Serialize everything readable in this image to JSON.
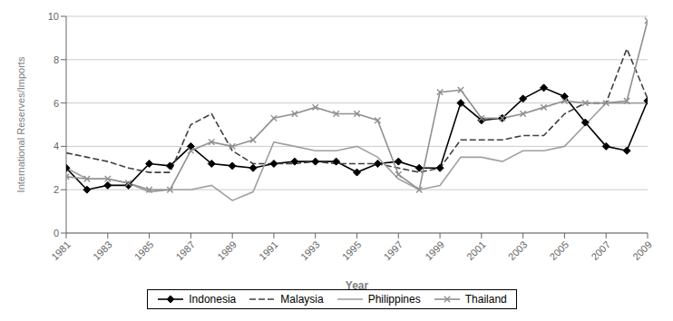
{
  "chart_data": {
    "type": "line",
    "x": [
      1981,
      1982,
      1983,
      1984,
      1985,
      1986,
      1987,
      1988,
      1989,
      1990,
      1991,
      1992,
      1993,
      1994,
      1995,
      1996,
      1997,
      1998,
      1999,
      2000,
      2001,
      2002,
      2003,
      2004,
      2005,
      2006,
      2007,
      2008,
      2009
    ],
    "series": [
      {
        "name": "Indonesia",
        "color": "#000000",
        "marker": "diamond",
        "line_style": "solid",
        "values": [
          3.0,
          2.0,
          2.2,
          2.2,
          3.2,
          3.1,
          4.0,
          3.2,
          3.1,
          3.0,
          3.2,
          3.3,
          3.3,
          3.3,
          2.8,
          3.2,
          3.3,
          3.0,
          3.0,
          6.0,
          5.2,
          5.3,
          6.2,
          6.7,
          6.3,
          5.1,
          4.0,
          3.8,
          6.1
        ]
      },
      {
        "name": "Malaysia",
        "color": "#404040",
        "line_style": "dashed",
        "values": [
          3.7,
          3.5,
          3.3,
          3.0,
          2.8,
          2.8,
          5.0,
          5.5,
          3.8,
          3.2,
          3.2,
          3.2,
          3.3,
          3.2,
          3.2,
          3.2,
          3.0,
          2.8,
          3.0,
          4.3,
          4.3,
          4.3,
          4.5,
          4.5,
          5.5,
          6.0,
          6.0,
          8.5,
          6.2
        ]
      },
      {
        "name": "Philippines",
        "color": "#a0a0a0",
        "line_style": "solid",
        "values": [
          3.0,
          2.5,
          2.5,
          2.3,
          1.9,
          2.0,
          2.0,
          2.2,
          1.5,
          1.9,
          4.2,
          4.0,
          3.8,
          3.8,
          4.0,
          3.5,
          2.5,
          2.0,
          2.2,
          3.5,
          3.5,
          3.3,
          3.8,
          3.8,
          4.0,
          5.0,
          6.0,
          6.0,
          6.0
        ]
      },
      {
        "name": "Thailand",
        "color": "#909090",
        "marker": "x",
        "line_style": "solid",
        "values": [
          2.6,
          2.5,
          2.5,
          2.3,
          2.0,
          2.0,
          3.8,
          4.2,
          4.0,
          4.3,
          5.3,
          5.5,
          5.8,
          5.5,
          5.5,
          5.2,
          2.7,
          2.0,
          6.5,
          6.6,
          5.3,
          5.3,
          5.5,
          5.8,
          6.1,
          6.0,
          6.0,
          6.1,
          9.8
        ]
      }
    ],
    "xlabel": "Year",
    "ylabel": "International Reserves/Imports",
    "xlim": [
      1981,
      2009
    ],
    "xticks": [
      1981,
      1983,
      1985,
      1987,
      1989,
      1991,
      1993,
      1995,
      1997,
      1999,
      2001,
      2003,
      2005,
      2007,
      2009
    ],
    "ylim": [
      0,
      10
    ],
    "yticks": [
      0,
      2,
      4,
      6,
      8,
      10
    ],
    "grid": "y",
    "legend": "bottom"
  }
}
